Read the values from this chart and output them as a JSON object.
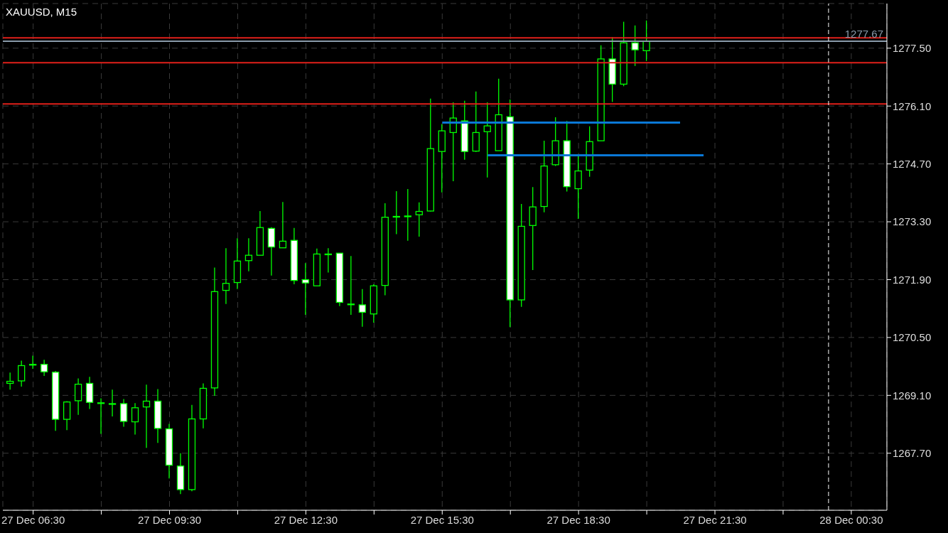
{
  "chart_data": {
    "type": "candlestick",
    "title": "XAUUSD, M15",
    "color": "#00ff00",
    "x": [
      "--12-27T06:00",
      "--12-27T06:15",
      "--12-27T06:30",
      "--12-27T06:45",
      "--12-27T07:00",
      "--12-27T07:15",
      "--12-27T07:30",
      "--12-27T07:45",
      "--12-27T08:00",
      "--12-27T08:15",
      "--12-27T08:30",
      "--12-27T08:45",
      "--12-27T09:00",
      "--12-27T09:15",
      "--12-27T09:30",
      "--12-27T09:45",
      "--12-27T10:00",
      "--12-27T10:15",
      "--12-27T10:30",
      "--12-27T10:45",
      "--12-27T11:00",
      "--12-27T11:15",
      "--12-27T11:30",
      "--12-27T11:45",
      "--12-27T12:00",
      "--12-27T12:15",
      "--12-27T12:30",
      "--12-27T12:45",
      "--12-27T13:00",
      "--12-27T13:15",
      "--12-27T13:30",
      "--12-27T13:45",
      "--12-27T14:00",
      "--12-27T14:15",
      "--12-27T14:30",
      "--12-27T14:45",
      "--12-27T15:00",
      "--12-27T15:15",
      "--12-27T15:30",
      "--12-27T15:45",
      "--12-27T16:00",
      "--12-27T16:15",
      "--12-27T16:30",
      "--12-27T16:45",
      "--12-27T17:00",
      "--12-27T17:15",
      "--12-27T17:30",
      "--12-27T17:45",
      "--12-27T18:00",
      "--12-27T18:15",
      "--12-27T18:30",
      "--12-27T18:45",
      "--12-27T19:00",
      "--12-27T19:15",
      "--12-27T19:30",
      "--12-27T19:45",
      "--12-27T20:00"
    ],
    "ohlc": [
      [
        1269.39,
        1269.65,
        1269.24,
        1269.44
      ],
      [
        1269.45,
        1269.94,
        1269.31,
        1269.82
      ],
      [
        1269.85,
        1270.06,
        1269.74,
        1269.85
      ],
      [
        1269.85,
        1269.96,
        1269.57,
        1269.67
      ],
      [
        1269.66,
        1269.69,
        1268.24,
        1268.52
      ],
      [
        1268.52,
        1268.96,
        1268.26,
        1268.94
      ],
      [
        1268.97,
        1269.51,
        1268.63,
        1269.37
      ],
      [
        1269.39,
        1269.55,
        1268.77,
        1268.93
      ],
      [
        1268.92,
        1269.03,
        1268.17,
        1268.92
      ],
      [
        1268.9,
        1269.24,
        1268.59,
        1268.9
      ],
      [
        1268.9,
        1269.01,
        1268.34,
        1268.47
      ],
      [
        1268.46,
        1268.91,
        1268.15,
        1268.8
      ],
      [
        1268.82,
        1269.36,
        1267.83,
        1268.96
      ],
      [
        1268.96,
        1269.25,
        1267.95,
        1268.3
      ],
      [
        1268.29,
        1268.41,
        1267.09,
        1267.41
      ],
      [
        1267.39,
        1267.7,
        1266.71,
        1266.82
      ],
      [
        1266.82,
        1268.87,
        1266.78,
        1268.53
      ],
      [
        1268.53,
        1269.39,
        1268.3,
        1269.27
      ],
      [
        1269.28,
        1272.19,
        1269.09,
        1271.61
      ],
      [
        1271.64,
        1272.66,
        1271.31,
        1271.81
      ],
      [
        1271.83,
        1272.9,
        1271.67,
        1272.35
      ],
      [
        1272.36,
        1272.9,
        1272.1,
        1272.49
      ],
      [
        1272.49,
        1273.56,
        1272.49,
        1273.16
      ],
      [
        1273.14,
        1273.17,
        1272.0,
        1272.69
      ],
      [
        1272.67,
        1273.78,
        1272.67,
        1272.83
      ],
      [
        1272.85,
        1273.15,
        1271.79,
        1271.88
      ],
      [
        1271.9,
        1272.3,
        1271.05,
        1271.82
      ],
      [
        1271.75,
        1272.65,
        1271.75,
        1272.52
      ],
      [
        1272.52,
        1272.66,
        1272.07,
        1272.52
      ],
      [
        1272.54,
        1272.54,
        1271.26,
        1271.35
      ],
      [
        1271.31,
        1272.47,
        1271.05,
        1271.31
      ],
      [
        1271.29,
        1271.67,
        1270.76,
        1271.11
      ],
      [
        1271.07,
        1271.79,
        1270.86,
        1271.75
      ],
      [
        1271.76,
        1273.75,
        1271.52,
        1273.41
      ],
      [
        1273.43,
        1274.04,
        1273.0,
        1273.43
      ],
      [
        1273.44,
        1274.09,
        1272.84,
        1273.44
      ],
      [
        1273.47,
        1273.77,
        1272.94,
        1273.55
      ],
      [
        1273.56,
        1276.28,
        1273.55,
        1275.07
      ],
      [
        1275.0,
        1275.66,
        1274.01,
        1275.5
      ],
      [
        1275.46,
        1276.19,
        1274.28,
        1275.81
      ],
      [
        1275.74,
        1276.23,
        1274.8,
        1275.0
      ],
      [
        1275.01,
        1276.45,
        1274.99,
        1275.46
      ],
      [
        1275.48,
        1276.19,
        1274.37,
        1275.62
      ],
      [
        1275.02,
        1276.76,
        1275.02,
        1275.89
      ],
      [
        1275.84,
        1276.26,
        1270.75,
        1271.41
      ],
      [
        1271.41,
        1273.73,
        1271.24,
        1273.19
      ],
      [
        1273.21,
        1274.14,
        1272.13,
        1273.66
      ],
      [
        1273.67,
        1275.26,
        1273.53,
        1274.65
      ],
      [
        1274.68,
        1275.83,
        1274.65,
        1275.26
      ],
      [
        1275.26,
        1275.74,
        1274.03,
        1274.15
      ],
      [
        1274.1,
        1274.92,
        1273.37,
        1274.53
      ],
      [
        1274.55,
        1275.61,
        1274.39,
        1275.24
      ],
      [
        1275.26,
        1277.57,
        1275.26,
        1277.24
      ],
      [
        1277.24,
        1277.77,
        1276.2,
        1276.63
      ],
      [
        1276.63,
        1278.14,
        1276.58,
        1277.63
      ],
      [
        1277.63,
        1278.05,
        1277.07,
        1277.46
      ],
      [
        1277.44,
        1278.17,
        1277.19,
        1277.67
      ]
    ],
    "series": [
      {
        "type": "line",
        "x": [
          "--12-27T15:30",
          "--12-27T20:44"
        ],
        "values": [
          1275.7,
          1275.7
        ],
        "color": "#0a78d6"
      },
      {
        "type": "line",
        "x": [
          "--12-27T16:30",
          "--12-27T21:15"
        ],
        "values": [
          1274.91,
          1274.91
        ],
        "color": "#0a78d6"
      }
    ],
    "xlim": [
      "--12-27T05:50",
      "--12-28T01:17"
    ],
    "ylim": [
      1266.32,
      1278.58
    ],
    "xticks": [
      {
        "value": "--12-27T06:30",
        "label": "27 Dec 06:30"
      },
      {
        "value": "--12-27T08:00",
        "label": null
      },
      {
        "value": "--12-27T09:30",
        "label": "27 Dec 09:30"
      },
      {
        "value": "--12-27T11:00",
        "label": null
      },
      {
        "value": "--12-27T12:30",
        "label": "27 Dec 12:30"
      },
      {
        "value": "--12-27T14:00",
        "label": null
      },
      {
        "value": "--12-27T15:30",
        "label": "27 Dec 15:30"
      },
      {
        "value": "--12-27T17:00",
        "label": null
      },
      {
        "value": "--12-27T18:30",
        "label": "27 Dec 18:30"
      },
      {
        "value": "--12-27T20:00",
        "label": null
      },
      {
        "value": "--12-27T21:30",
        "label": "27 Dec 21:30"
      },
      {
        "value": "--12-27T23:00",
        "label": null
      },
      {
        "value": "--12-28T00:30",
        "label": "28 Dec 00:30"
      }
    ],
    "yticks": [
      {
        "value": 1267.7,
        "label": "1267.70"
      },
      {
        "value": 1269.1,
        "label": "1269.10"
      },
      {
        "value": 1270.5,
        "label": "1270.50"
      },
      {
        "value": 1271.9,
        "label": "1271.90"
      },
      {
        "value": 1273.3,
        "label": "1273.30"
      },
      {
        "value": 1274.7,
        "label": "1274.70"
      },
      {
        "value": 1276.1,
        "label": "1276.10"
      },
      {
        "value": 1277.5,
        "label": "1277.50"
      }
    ],
    "grid": true,
    "ref_lines": [
      {
        "axis": "y",
        "value": 1277.15,
        "color": "#e0201a"
      },
      {
        "axis": "y",
        "value": 1276.15,
        "color": "#e0201a"
      },
      {
        "axis": "y",
        "value": 1277.75,
        "color": "#e0201a"
      },
      {
        "axis": "y",
        "value": 1277.67,
        "label": "1277.67",
        "color": "#8a9aaa"
      },
      {
        "axis": "x",
        "value": "--12-28T00:00",
        "color": "#ffffff",
        "line_style": "dashed"
      }
    ]
  }
}
